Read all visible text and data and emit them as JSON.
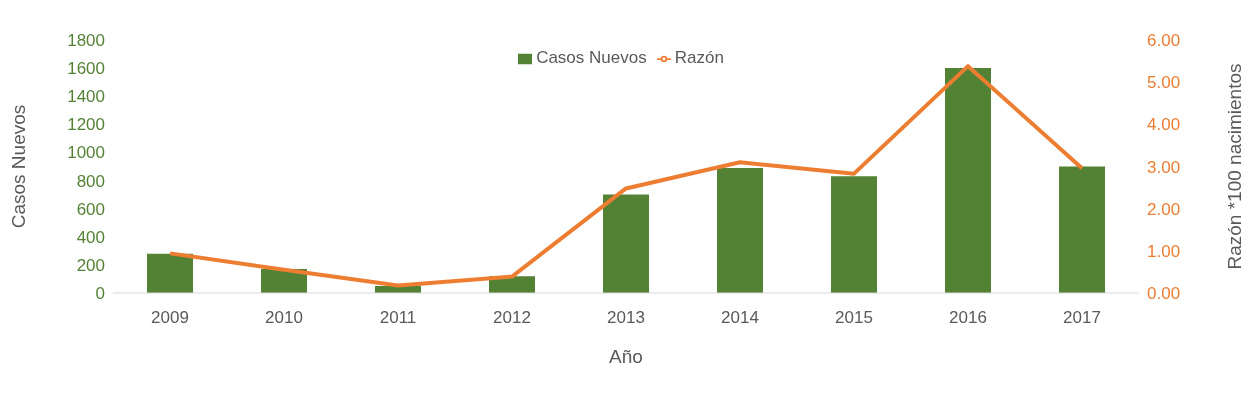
{
  "chart_data": {
    "type": "bar",
    "xlabel": "Año",
    "ylabel": "Casos Nuevos",
    "y2label": "Razón *100 nacimientos",
    "categories": [
      "2009",
      "2010",
      "2011",
      "2012",
      "2013",
      "2014",
      "2015",
      "2016",
      "2017"
    ],
    "series": [
      {
        "name": "Casos Nuevos",
        "color": "#548235",
        "values": [
          280,
          170,
          50,
          120,
          700,
          890,
          830,
          1600,
          900
        ]
      },
      {
        "name": "Razón",
        "type": "line",
        "axis": "y2",
        "color": "#ed7d31",
        "values": [
          0.94,
          0.55,
          0.18,
          0.39,
          2.48,
          3.1,
          2.83,
          5.38,
          2.96
        ]
      }
    ],
    "ylim": [
      0,
      1800
    ],
    "yticks": [
      0,
      200,
      400,
      600,
      800,
      1000,
      1200,
      1400,
      1600,
      1800
    ],
    "y2lim": [
      0,
      6
    ],
    "y2ticks": [
      {
        "value": 0,
        "label": "0.00"
      },
      {
        "value": 1,
        "label": "1.00"
      },
      {
        "value": 2,
        "label": "2.00"
      },
      {
        "value": 3,
        "label": "3.00"
      },
      {
        "value": 4,
        "label": "4.00"
      },
      {
        "value": 5,
        "label": "5.00"
      },
      {
        "value": 6,
        "label": "6.00"
      }
    ],
    "grid": false,
    "legend": "top",
    "marker": "none"
  }
}
